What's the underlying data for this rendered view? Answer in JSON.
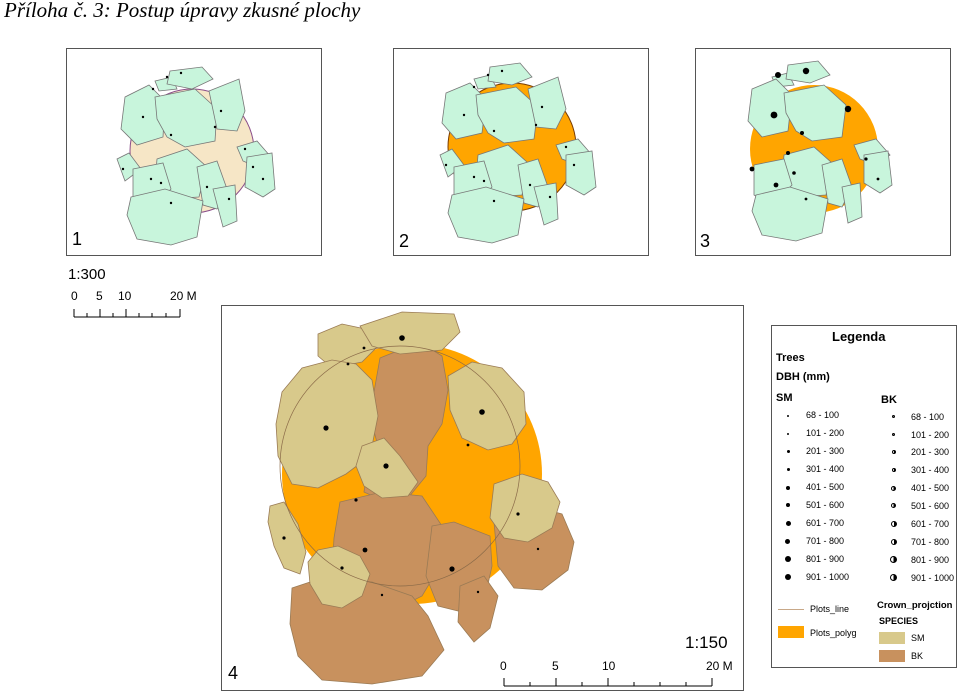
{
  "title": "Příloha č. 3: Postup úpravy zkusné plochy",
  "panels": {
    "p1": "1",
    "p2": "2",
    "p3": "3",
    "p4": "4"
  },
  "scale_small": {
    "ratio": "1:300",
    "labels": [
      "0",
      "5",
      "10",
      "20 M"
    ]
  },
  "scale_large": {
    "ratio": "1:150",
    "labels": [
      "0",
      "5",
      "10",
      "20 M"
    ]
  },
  "colors": {
    "crown_green": "#c8f5dc",
    "plot_fill_1": "#f6e6c6",
    "plot_orange": "#ffa500",
    "sm": "#d8c98b",
    "bk": "#c8915e"
  },
  "legend": {
    "title": "Legenda",
    "trees": "Trees",
    "dbh": "DBH (mm)",
    "sm_head": "SM",
    "bk_head": "BK",
    "classes": [
      "68 - 100",
      "101 - 200",
      "201 - 300",
      "301 - 400",
      "401 - 500",
      "501 - 600",
      "601 - 700",
      "701 - 800",
      "801 - 900",
      "901 - 1000"
    ],
    "plots_line": "Plots_line",
    "plots_polyg": "Plots_polyg",
    "crown_projection": "Crown_projction",
    "species": "SPECIES",
    "sm": "SM",
    "bk": "BK"
  }
}
